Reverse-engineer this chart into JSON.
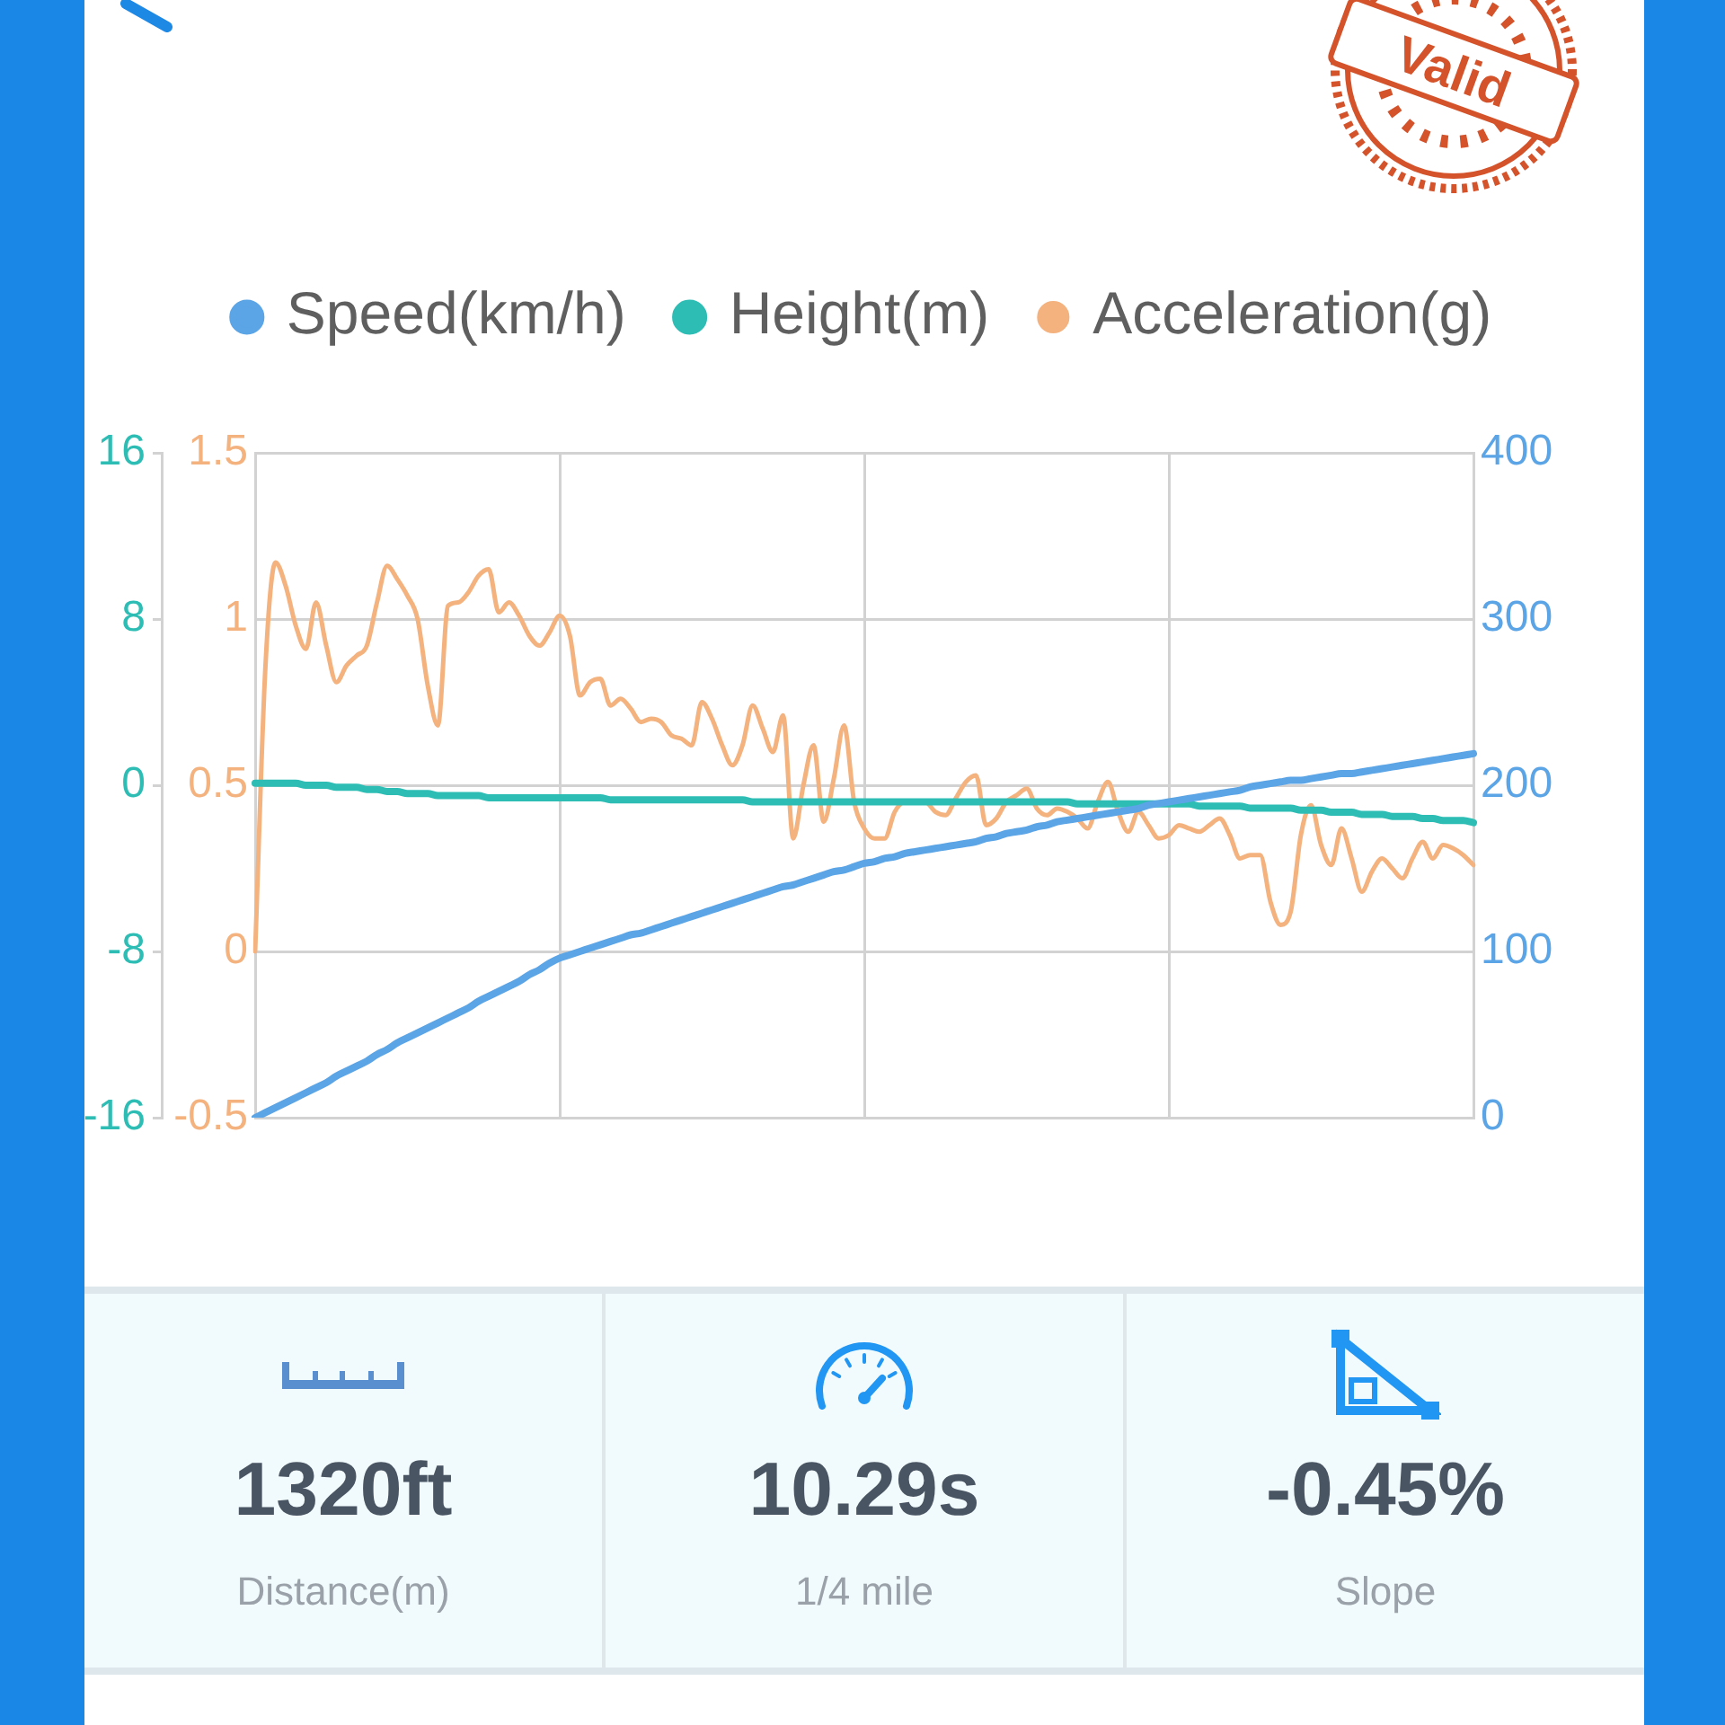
{
  "chart_data": [
    {
      "type": "line",
      "categories": [
        null,
        null,
        null,
        null,
        null,
        null,
        null,
        null,
        null,
        null,
        null,
        null,
        null,
        null,
        null,
        null,
        null,
        null,
        null,
        null,
        null,
        null,
        null,
        null,
        null,
        null,
        null,
        null,
        null,
        null,
        null,
        null,
        null,
        null,
        null,
        null,
        null,
        null,
        null,
        null,
        null,
        null,
        null,
        null,
        null,
        null,
        null,
        null,
        null,
        null,
        null,
        null,
        null,
        null,
        null,
        null,
        null,
        null,
        null,
        null,
        null,
        null,
        null,
        null,
        null,
        null,
        null,
        null,
        null,
        null,
        null,
        null,
        null,
        null,
        null,
        null,
        null,
        null,
        null,
        null,
        null,
        null,
        null,
        null,
        null,
        null,
        null,
        null,
        null,
        null,
        null,
        null,
        null,
        null,
        null,
        null,
        null,
        null,
        null,
        null,
        null,
        null,
        null,
        null,
        null,
        null,
        null,
        null,
        null,
        null,
        null,
        null,
        null,
        null,
        null,
        null,
        null,
        null,
        null,
        null,
        null
      ],
      "series": [
        {
          "name": "Speed(km/h)",
          "color": "#5ba4e6",
          "axis": "y2",
          "values": [
            0,
            3,
            6,
            9,
            12,
            15,
            18,
            21,
            25,
            28,
            31,
            34,
            38,
            41,
            45,
            48,
            51,
            54,
            57,
            60,
            63,
            66,
            70,
            73,
            76,
            79,
            82,
            86,
            89,
            93,
            96,
            98,
            100,
            102,
            104,
            106,
            108,
            110,
            111,
            113,
            115,
            117,
            119,
            121,
            123,
            125,
            127,
            129,
            131,
            133,
            135,
            137,
            139,
            140,
            142,
            144,
            146,
            148,
            149,
            151,
            153,
            154,
            156,
            157,
            159,
            160,
            161,
            162,
            163,
            164,
            165,
            166,
            168,
            169,
            171,
            172,
            173,
            175,
            176,
            178,
            179,
            180,
            181,
            182,
            183,
            184,
            185,
            186,
            188,
            189,
            190,
            191,
            192,
            193,
            194,
            195,
            196,
            197,
            199,
            200,
            201,
            202,
            203,
            203,
            204,
            205,
            206,
            207,
            207,
            208,
            209,
            210,
            211,
            212,
            213,
            214,
            215,
            216,
            217,
            218,
            219
          ]
        },
        {
          "name": "Height(m)",
          "color": "#2ebdb5",
          "axis": "y3",
          "values": [
            0.1,
            0.1,
            0.1,
            0.1,
            0.1,
            0,
            0,
            0,
            -0.1,
            -0.1,
            -0.1,
            -0.2,
            -0.2,
            -0.3,
            -0.3,
            -0.4,
            -0.4,
            -0.4,
            -0.5,
            -0.5,
            -0.5,
            -0.5,
            -0.5,
            -0.6,
            -0.6,
            -0.6,
            -0.6,
            -0.6,
            -0.6,
            -0.6,
            -0.6,
            -0.6,
            -0.6,
            -0.6,
            -0.6,
            -0.7,
            -0.7,
            -0.7,
            -0.7,
            -0.7,
            -0.7,
            -0.7,
            -0.7,
            -0.7,
            -0.7,
            -0.7,
            -0.7,
            -0.7,
            -0.7,
            -0.8,
            -0.8,
            -0.8,
            -0.8,
            -0.8,
            -0.8,
            -0.8,
            -0.8,
            -0.8,
            -0.8,
            -0.8,
            -0.8,
            -0.8,
            -0.8,
            -0.8,
            -0.8,
            -0.8,
            -0.8,
            -0.8,
            -0.8,
            -0.8,
            -0.8,
            -0.8,
            -0.8,
            -0.8,
            -0.8,
            -0.8,
            -0.8,
            -0.8,
            -0.8,
            -0.8,
            -0.8,
            -0.9,
            -0.9,
            -0.9,
            -0.9,
            -0.9,
            -0.9,
            -0.9,
            -0.9,
            -0.9,
            -0.9,
            -0.9,
            -0.9,
            -1.0,
            -1.0,
            -1.0,
            -1.0,
            -1.0,
            -1.1,
            -1.1,
            -1.1,
            -1.1,
            -1.1,
            -1.2,
            -1.2,
            -1.2,
            -1.3,
            -1.3,
            -1.3,
            -1.4,
            -1.4,
            -1.4,
            -1.5,
            -1.5,
            -1.5,
            -1.6,
            -1.6,
            -1.7,
            -1.7,
            -1.7,
            -1.8
          ]
        },
        {
          "name": "Acceleration(g)",
          "color": "#f4b27f",
          "values": [
            0,
            0.85,
            1.17,
            1.1,
            0.98,
            0.91,
            1.05,
            0.92,
            0.81,
            0.86,
            0.89,
            0.92,
            1.05,
            1.16,
            1.12,
            1.07,
            1.0,
            0.8,
            0.68,
            1.04,
            1.05,
            1.08,
            1.13,
            1.15,
            1.02,
            1.05,
            1.01,
            0.95,
            0.92,
            0.96,
            1.01,
            0.95,
            0.77,
            0.81,
            0.82,
            0.74,
            0.76,
            0.73,
            0.69,
            0.7,
            0.69,
            0.65,
            0.64,
            0.62,
            0.75,
            0.7,
            0.62,
            0.56,
            0.62,
            0.74,
            0.67,
            0.6,
            0.71,
            0.34,
            0.5,
            0.62,
            0.39,
            0.52,
            0.68,
            0.45,
            0.37,
            0.34,
            0.34,
            0.42,
            0.45,
            0.45,
            0.45,
            0.42,
            0.41,
            0.46,
            0.51,
            0.53,
            0.38,
            0.4,
            0.45,
            0.47,
            0.49,
            0.43,
            0.41,
            0.43,
            0.42,
            0.4,
            0.37,
            0.45,
            0.51,
            0.42,
            0.36,
            0.42,
            0.38,
            0.34,
            0.35,
            0.38,
            0.37,
            0.36,
            0.38,
            0.4,
            0.35,
            0.28,
            0.29,
            0.29,
            0.15,
            0.08,
            0.12,
            0.35,
            0.44,
            0.32,
            0.26,
            0.37,
            0.28,
            0.18,
            0.24,
            0.28,
            0.25,
            0.22,
            0.28,
            0.33,
            0.28,
            0.32,
            0.31,
            0.29,
            0.26
          ]
        }
      ],
      "ylim": [
        -0.5,
        1.5
      ],
      "yticks": [
        -0.5,
        0,
        0.5,
        1,
        1.5
      ],
      "y2lim": [
        0,
        400
      ],
      "y2ticks": [
        0,
        100,
        200,
        300,
        400
      ],
      "y3lim": [
        -16,
        16
      ],
      "y3ticks": [
        -16,
        -8,
        0,
        8,
        16
      ],
      "grid": true,
      "legend": "top",
      "annotations": [
        "Valid"
      ]
    },
    {
      "type": "other",
      "annotations": [
        "1320ft",
        "Distance(m)",
        "10.29s",
        "1/4 mile",
        "-0.45%",
        "Slope"
      ]
    }
  ]
}
